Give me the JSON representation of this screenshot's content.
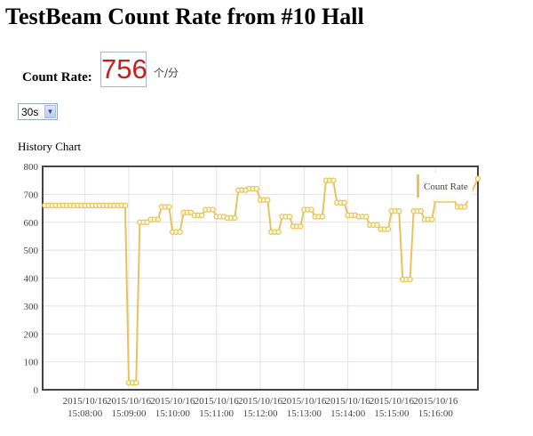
{
  "page": {
    "title": "TestBeam Count Rate from #10 Hall",
    "count_rate_label": "Count Rate:",
    "count_rate_value": "756",
    "count_rate_unit": "个/分",
    "interval_select": {
      "selected": "30s"
    },
    "history_chart_label": "History Chart"
  },
  "chart_data": {
    "type": "line",
    "title": "",
    "xlabel": "",
    "ylabel": "",
    "ylim": [
      0,
      800
    ],
    "yticks": [
      0,
      100,
      200,
      300,
      400,
      500,
      600,
      700,
      800
    ],
    "x_date": "2015/10/16",
    "xlim": [
      "15:07:02",
      "15:16:58"
    ],
    "x_start": "15:07:05",
    "interval_seconds": 5,
    "xticks": [
      "15:08:00",
      "15:09:00",
      "15:10:00",
      "15:11:00",
      "15:12:00",
      "15:13:00",
      "15:14:00",
      "15:15:00",
      "15:16:00"
    ],
    "grid": true,
    "legend_placement": "top-right",
    "color": "#e6c35c",
    "series": [
      {
        "name": "Count Rate",
        "values": [
          660,
          660,
          660,
          660,
          660,
          660,
          660,
          660,
          660,
          660,
          660,
          660,
          660,
          660,
          660,
          660,
          660,
          660,
          660,
          660,
          660,
          660,
          660,
          25,
          25,
          25,
          600,
          600,
          600,
          610,
          610,
          610,
          655,
          655,
          655,
          565,
          565,
          565,
          635,
          635,
          635,
          625,
          625,
          625,
          645,
          645,
          645,
          620,
          620,
          620,
          615,
          615,
          615,
          715,
          715,
          715,
          720,
          720,
          720,
          680,
          680,
          680,
          565,
          565,
          565,
          620,
          620,
          620,
          585,
          585,
          585,
          645,
          645,
          645,
          620,
          620,
          620,
          750,
          750,
          750,
          670,
          670,
          670,
          625,
          625,
          625,
          620,
          620,
          620,
          590,
          590,
          590,
          575,
          575,
          575,
          640,
          640,
          640,
          395,
          395,
          395,
          640,
          640,
          640,
          610,
          610,
          610,
          680,
          680,
          680,
          680,
          680,
          680,
          655,
          655,
          655,
          756
        ]
      }
    ]
  }
}
